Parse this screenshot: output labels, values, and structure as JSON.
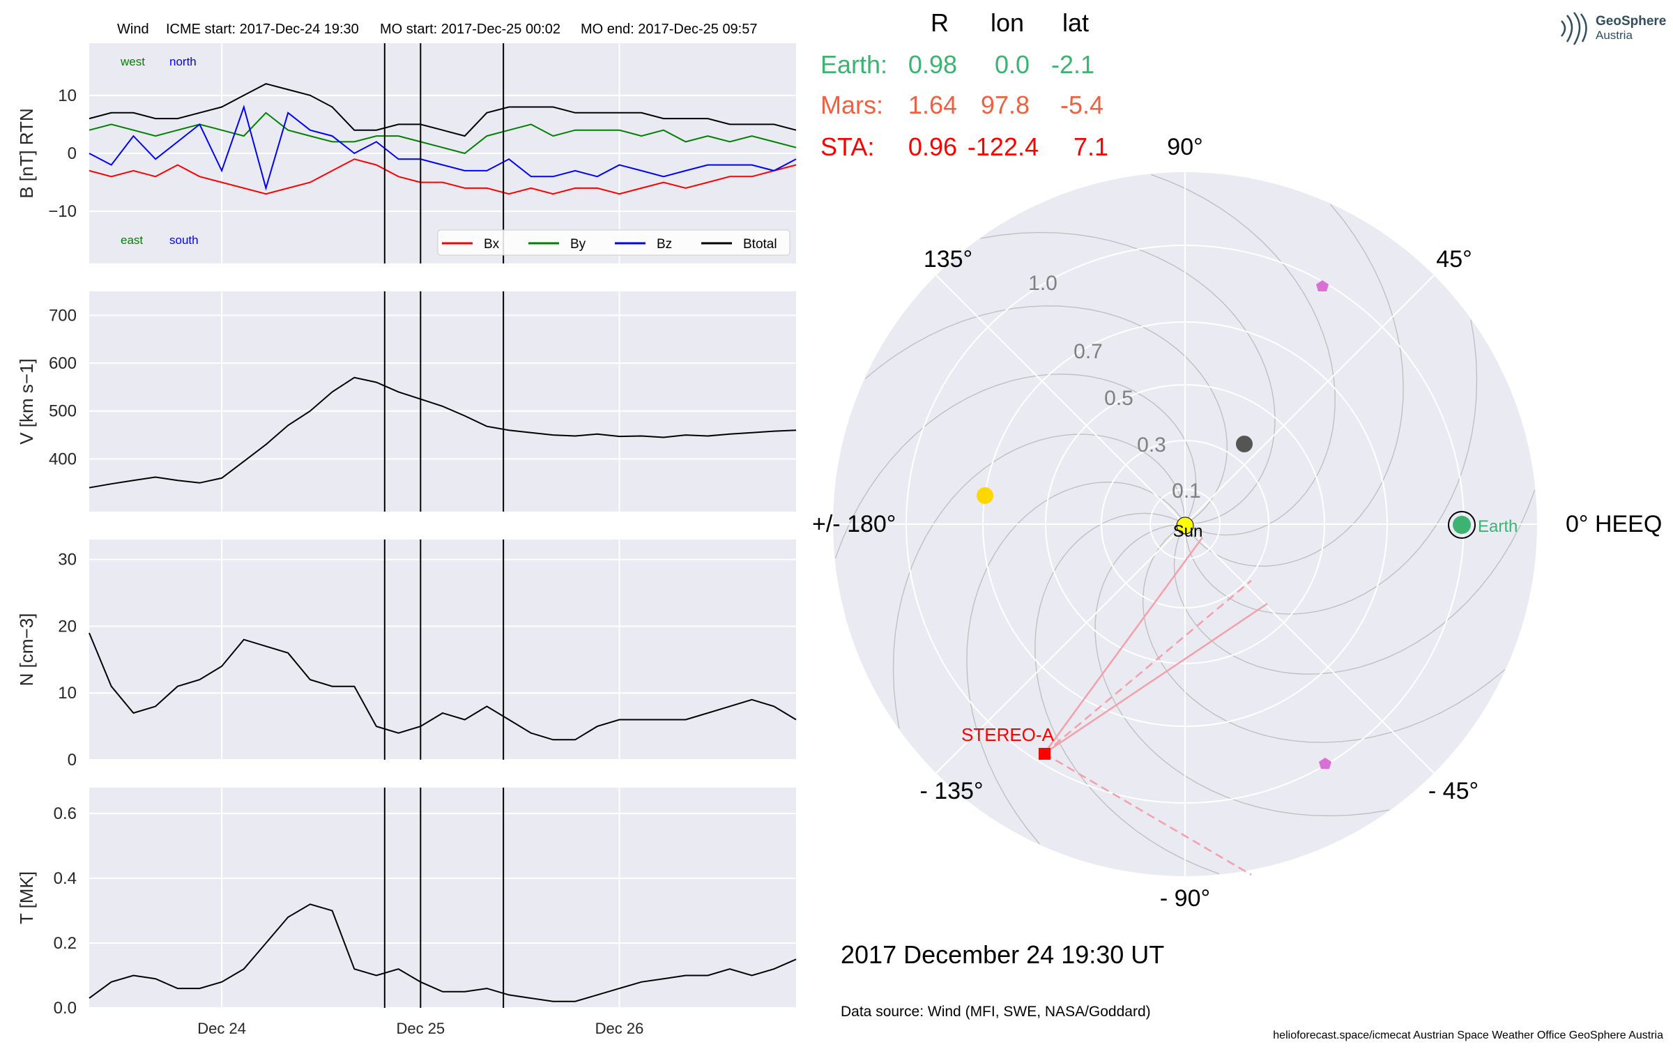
{
  "header": {
    "spacecraft": "Wind",
    "icme_start": "ICME start: 2017-Dec-24 19:30",
    "mo_start": "MO start: 2017-Dec-25 00:02",
    "mo_end": "MO end: 2017-Dec-25 09:57"
  },
  "logo": {
    "line1": "GeoSphere",
    "line2": "Austria"
  },
  "positions_table": {
    "columns": [
      "R",
      "lon",
      "lat"
    ],
    "rows": [
      {
        "name": "Earth:",
        "R": "0.98",
        "lon": "0.0",
        "lat": "-2.1",
        "color": "#3cb371"
      },
      {
        "name": "Mars:",
        "R": "1.64",
        "lon": "97.8",
        "lat": "-5.4",
        "color": "#f06040"
      },
      {
        "name": "STA:",
        "R": "0.96",
        "lon": "-122.4",
        "lat": "7.1",
        "color": "#ff0000"
      }
    ]
  },
  "polar_plot": {
    "angle_labels": {
      "a90": "90°",
      "a135": "135°",
      "a45": "45°",
      "a180": "+/- 180°",
      "a0": "0° HEEQ",
      "am135": "- 135°",
      "am45": "- 45°",
      "am90": "- 90°"
    },
    "radial_labels": [
      "1.0",
      "0.7",
      "0.5",
      "0.3",
      "0.1"
    ],
    "sun_label": "Sun",
    "earth_label": "Earth",
    "stereo_label": "STEREO-A",
    "colors": {
      "earth": "#3cb371",
      "sta": "#ff0000",
      "mercury": "#555555",
      "venus": "#ffd700",
      "mars_marker": "#da70d6",
      "sun": "#ffff00"
    }
  },
  "date_text": "2017 December 24  19:30 UT",
  "data_source": "Data source: Wind (MFI, SWE, NASA/Goddard)",
  "footer": "helioforecast.space/icmecat   Austrian Space Weather Office   GeoSphere Austria",
  "chart_data": [
    {
      "type": "line",
      "ylabel": "B [nT] RTN",
      "ylim": [
        -19,
        19
      ],
      "yticks": [
        "10",
        "0",
        "−10"
      ],
      "series": [
        {
          "name": "Bx",
          "color": "#ff0000",
          "x": [
            0,
            4,
            8,
            12,
            16,
            20,
            24,
            28,
            32,
            36,
            40,
            44,
            48,
            52,
            56,
            60,
            64,
            68,
            72,
            76,
            80,
            84,
            88,
            92,
            96,
            100,
            104,
            108,
            112,
            116,
            120,
            124,
            128
          ],
          "values": [
            -3,
            -4,
            -3,
            -4,
            -2,
            -4,
            -5,
            -6,
            -7,
            -6,
            -5,
            -3,
            -1,
            -2,
            -4,
            -5,
            -5,
            -6,
            -6,
            -7,
            -6,
            -7,
            -6,
            -6,
            -7,
            -6,
            -5,
            -6,
            -5,
            -4,
            -4,
            -3,
            -2
          ]
        },
        {
          "name": "By",
          "color": "#008000",
          "x": [
            0,
            4,
            8,
            12,
            16,
            20,
            24,
            28,
            32,
            36,
            40,
            44,
            48,
            52,
            56,
            60,
            64,
            68,
            72,
            76,
            80,
            84,
            88,
            92,
            96,
            100,
            104,
            108,
            112,
            116,
            120,
            124,
            128
          ],
          "values": [
            4,
            5,
            4,
            3,
            4,
            5,
            4,
            3,
            7,
            4,
            3,
            2,
            2,
            3,
            3,
            2,
            1,
            0,
            3,
            4,
            5,
            3,
            4,
            4,
            4,
            3,
            4,
            2,
            3,
            2,
            3,
            2,
            1
          ]
        },
        {
          "name": "Bz",
          "color": "#0000ff",
          "x": [
            0,
            4,
            8,
            12,
            16,
            20,
            24,
            28,
            32,
            36,
            40,
            44,
            48,
            52,
            56,
            60,
            64,
            68,
            72,
            76,
            80,
            84,
            88,
            92,
            96,
            100,
            104,
            108,
            112,
            116,
            120,
            124,
            128
          ],
          "values": [
            0,
            -2,
            3,
            -1,
            2,
            5,
            -3,
            8,
            -6,
            7,
            4,
            3,
            0,
            2,
            -1,
            -1,
            -2,
            -3,
            -3,
            -1,
            -4,
            -4,
            -3,
            -4,
            -2,
            -3,
            -4,
            -3,
            -2,
            -2,
            -2,
            -3,
            -1
          ]
        },
        {
          "name": "Btotal",
          "color": "#000000",
          "x": [
            0,
            4,
            8,
            12,
            16,
            20,
            24,
            28,
            32,
            36,
            40,
            44,
            48,
            52,
            56,
            60,
            64,
            68,
            72,
            76,
            80,
            84,
            88,
            92,
            96,
            100,
            104,
            108,
            112,
            116,
            120,
            124,
            128
          ],
          "values": [
            6,
            7,
            7,
            6,
            6,
            7,
            8,
            10,
            12,
            11,
            10,
            8,
            4,
            4,
            5,
            5,
            4,
            3,
            7,
            8,
            8,
            8,
            7,
            7,
            7,
            7,
            6,
            6,
            6,
            5,
            5,
            5,
            4
          ]
        }
      ],
      "legend": [
        "Bx",
        "By",
        "Bz",
        "Btotal"
      ],
      "annotations": {
        "west": "west",
        "north": "north",
        "east": "east",
        "south": "south"
      }
    },
    {
      "type": "line",
      "ylabel": "V [km s−1]",
      "ylim": [
        290,
        750
      ],
      "yticks": [
        "700",
        "600",
        "500",
        "400"
      ],
      "series": [
        {
          "name": "V",
          "color": "#000000",
          "x": [
            0,
            4,
            8,
            12,
            16,
            20,
            24,
            28,
            32,
            36,
            40,
            44,
            48,
            52,
            56,
            60,
            64,
            68,
            72,
            76,
            80,
            84,
            88,
            92,
            96,
            100,
            104,
            108,
            112,
            116,
            120,
            124,
            128
          ],
          "values": [
            340,
            348,
            355,
            362,
            355,
            350,
            360,
            395,
            430,
            470,
            500,
            540,
            570,
            560,
            540,
            525,
            510,
            490,
            468,
            460,
            455,
            450,
            448,
            452,
            447,
            448,
            445,
            450,
            448,
            452,
            455,
            458,
            460
          ]
        }
      ]
    },
    {
      "type": "line",
      "ylabel": "N [cm−3]",
      "ylim": [
        0,
        33
      ],
      "yticks": [
        "30",
        "20",
        "10",
        "0"
      ],
      "series": [
        {
          "name": "N",
          "color": "#000000",
          "x": [
            0,
            4,
            8,
            12,
            16,
            20,
            24,
            28,
            32,
            36,
            40,
            44,
            48,
            52,
            56,
            60,
            64,
            68,
            72,
            76,
            80,
            84,
            88,
            92,
            96,
            100,
            104,
            108,
            112,
            116,
            120,
            124,
            128
          ],
          "values": [
            19,
            11,
            7,
            8,
            11,
            12,
            14,
            18,
            17,
            16,
            12,
            11,
            11,
            5,
            4,
            5,
            7,
            6,
            8,
            6,
            4,
            3,
            3,
            5,
            6,
            6,
            6,
            6,
            7,
            8,
            9,
            8,
            6
          ]
        }
      ]
    },
    {
      "type": "line",
      "ylabel": "T [MK]",
      "ylim": [
        0,
        0.68
      ],
      "yticks": [
        "0.6",
        "0.4",
        "0.2",
        "0.0"
      ],
      "series": [
        {
          "name": "T",
          "color": "#000000",
          "x": [
            0,
            4,
            8,
            12,
            16,
            20,
            24,
            28,
            32,
            36,
            40,
            44,
            48,
            52,
            56,
            60,
            64,
            68,
            72,
            76,
            80,
            84,
            88,
            92,
            96,
            100,
            104,
            108,
            112,
            116,
            120,
            124,
            128
          ],
          "values": [
            0.03,
            0.08,
            0.1,
            0.09,
            0.06,
            0.06,
            0.08,
            0.12,
            0.2,
            0.28,
            0.32,
            0.3,
            0.12,
            0.1,
            0.12,
            0.08,
            0.05,
            0.05,
            0.06,
            0.04,
            0.03,
            0.02,
            0.02,
            0.04,
            0.06,
            0.08,
            0.09,
            0.1,
            0.1,
            0.12,
            0.1,
            0.12,
            0.15
          ]
        }
      ],
      "xticks": [
        {
          "x": 24,
          "label": "Dec 24"
        },
        {
          "x": 60,
          "label": "Dec 25"
        },
        {
          "x": 96,
          "label": "Dec 26"
        }
      ]
    }
  ],
  "event_lines_x": [
    53.5,
    60,
    75
  ]
}
